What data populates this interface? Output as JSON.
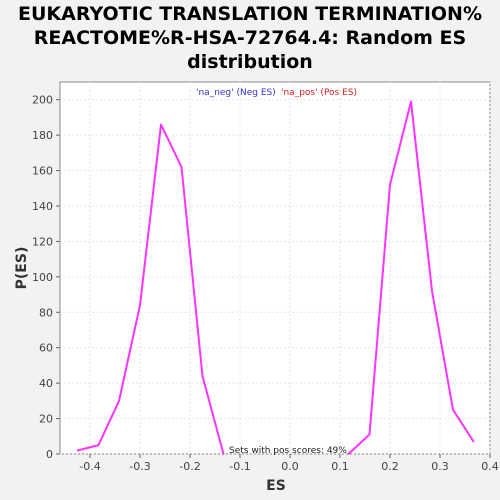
{
  "chart_data": {
    "type": "line",
    "title_lines": [
      "EUKARYOTIC TRANSLATION TERMINATION%",
      "REACTOME%R-HSA-72764.4: Random ES",
      "distribution"
    ],
    "xlabel": "ES",
    "ylabel": "P(ES)",
    "xlim": [
      -0.46,
      0.4
    ],
    "ylim": [
      0,
      210
    ],
    "x_ticks": [
      "-0.4",
      "-0.3",
      "-0.2",
      "-0.1",
      "0.0",
      "0.1",
      "0.2",
      "0.3",
      "0.4"
    ],
    "x_tick_values": [
      -0.4,
      -0.3,
      -0.2,
      -0.1,
      0.0,
      0.1,
      0.2,
      0.3,
      0.4
    ],
    "y_ticks": [
      "0",
      "20",
      "40",
      "60",
      "80",
      "100",
      "120",
      "140",
      "160",
      "180",
      "200"
    ],
    "y_tick_values": [
      0,
      20,
      40,
      60,
      80,
      100,
      120,
      140,
      160,
      180,
      200
    ],
    "grid": true,
    "legend_position": "top-center",
    "legend": [
      {
        "text": "'na_neg' (Neg ES)",
        "color": "#3333cc"
      },
      {
        "text": "'na_pos' (Pos ES)",
        "color": "#cc2222"
      }
    ],
    "annotation": "Sets with pos scores: 49%",
    "line_color": "#ff33ff",
    "series": [
      {
        "x": [
          -0.425,
          -0.383,
          -0.342,
          -0.3,
          -0.258,
          -0.217,
          -0.175,
          -0.133
        ],
        "y": [
          2,
          5,
          30,
          84,
          186,
          162,
          44,
          0
        ]
      },
      {
        "x": [
          0.117,
          0.159,
          0.2,
          0.242,
          0.284,
          0.326,
          0.367
        ],
        "y": [
          0,
          11,
          152,
          199,
          92,
          25,
          7
        ]
      }
    ]
  }
}
